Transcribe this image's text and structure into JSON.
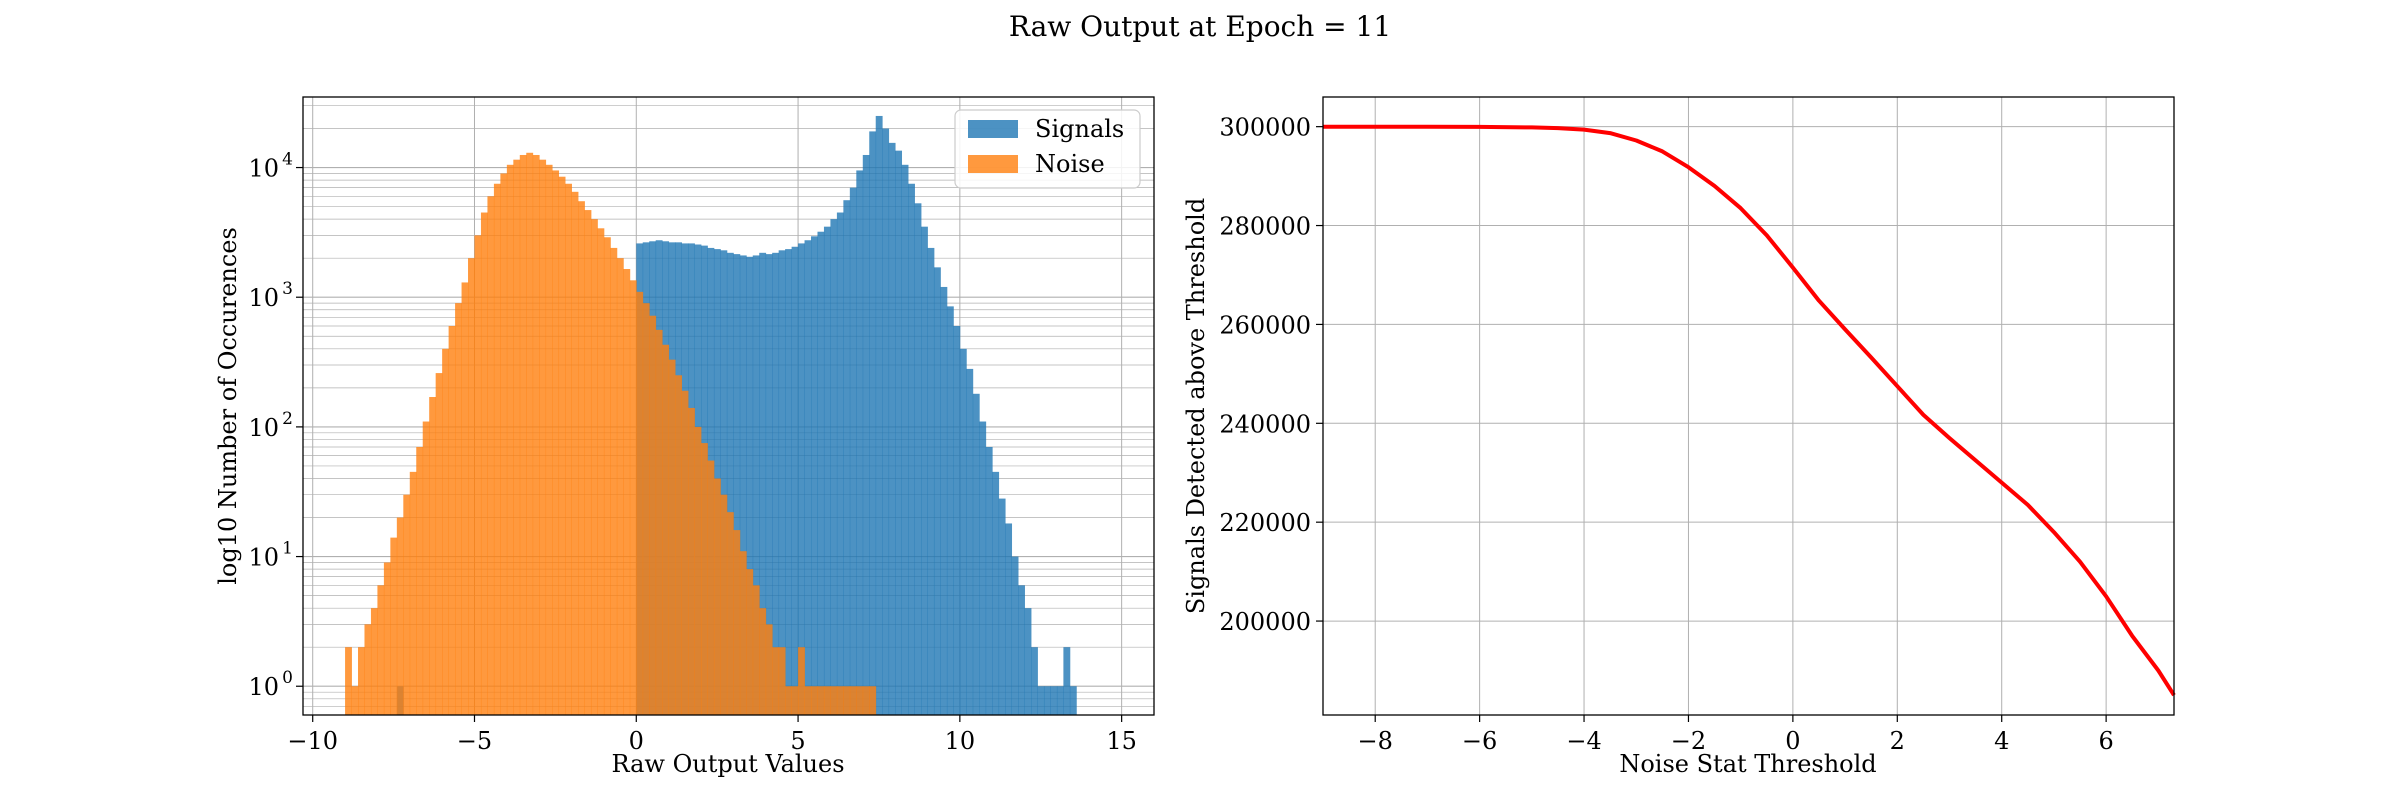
{
  "figure": {
    "title": "Raw Output at Epoch = 11"
  },
  "chart_data": [
    {
      "type": "bar",
      "subtype": "histogram",
      "xlabel": "Raw Output Values",
      "ylabel": "log10 Number of Occurences",
      "yscale": "log",
      "xlim": [
        -10.3,
        16.0
      ],
      "ylim": [
        0.6,
        35000
      ],
      "xticks": [
        "−10",
        "−5",
        "0",
        "5",
        "10",
        "15"
      ],
      "xtick_values": [
        -10,
        -5,
        0,
        5,
        10,
        15
      ],
      "yticks": [
        "10",
        "10",
        "10",
        "10",
        "10"
      ],
      "ytick_exponents": [
        "0",
        "1",
        "2",
        "3",
        "4"
      ],
      "ytick_values": [
        1,
        10,
        100,
        1000,
        10000
      ],
      "grid": true,
      "legend": "top-right",
      "series": [
        {
          "name": "Signals",
          "color": "#1f77b4",
          "opacity": 0.8,
          "x": [
            -9.0,
            -8.8,
            -8.6,
            -8.4,
            -8.2,
            -8.0,
            -7.8,
            -7.6,
            -7.4,
            -7.2,
            -7.0,
            -6.8,
            -6.6,
            -6.4,
            -6.2,
            -6.0,
            -5.8,
            -5.6,
            -5.4,
            -5.2,
            -5.0,
            -4.8,
            -4.6,
            -4.4,
            -4.2,
            -4.0,
            -3.8,
            -3.6,
            -3.4,
            -3.2,
            -3.0,
            -2.8,
            -2.6,
            -2.4,
            -2.2,
            -2.0,
            -1.8,
            -1.6,
            -1.4,
            -1.2,
            -1.0,
            -0.8,
            -0.6,
            -0.4,
            -0.2,
            0.0,
            0.2,
            0.4,
            0.6,
            0.8,
            1.0,
            1.2,
            1.4,
            1.6,
            1.8,
            2.0,
            2.2,
            2.4,
            2.6,
            2.8,
            3.0,
            3.2,
            3.4,
            3.6,
            3.8,
            4.0,
            4.2,
            4.4,
            4.6,
            4.8,
            5.0,
            5.2,
            5.4,
            5.6,
            5.8,
            6.0,
            6.2,
            6.4,
            6.6,
            6.8,
            7.0,
            7.2,
            7.4,
            7.6,
            7.8,
            8.0,
            8.2,
            8.4,
            8.6,
            8.8,
            9.0,
            9.2,
            9.4,
            9.6,
            9.8,
            10.0,
            10.2,
            10.4,
            10.6,
            10.8,
            11.0,
            11.2,
            11.4,
            11.6,
            11.8,
            12.0,
            12.2,
            12.4,
            12.6,
            12.8,
            13.0,
            13.2,
            13.4,
            13.6,
            13.8,
            14.0,
            14.2,
            14.4,
            14.6,
            14.8
          ],
          "values": [
            0,
            0,
            0,
            0,
            0,
            0,
            0,
            0,
            1,
            0,
            0,
            0,
            0,
            0,
            0,
            0,
            0,
            0,
            0,
            0,
            0,
            0,
            0,
            0,
            0,
            0,
            0,
            0,
            0,
            0,
            0,
            0,
            0,
            0,
            0,
            0,
            0,
            0,
            0,
            0,
            0,
            0,
            0,
            0,
            0,
            2600,
            2650,
            2700,
            2750,
            2700,
            2650,
            2650,
            2600,
            2600,
            2550,
            2500,
            2400,
            2350,
            2300,
            2200,
            2150,
            2100,
            2050,
            2100,
            2200,
            2150,
            2200,
            2300,
            2350,
            2450,
            2600,
            2750,
            2950,
            3200,
            3500,
            4000,
            4500,
            5600,
            7000,
            9500,
            12500,
            19000,
            25000,
            20000,
            15500,
            13500,
            10500,
            7500,
            5300,
            3500,
            2400,
            1700,
            1200,
            850,
            600,
            400,
            280,
            180,
            110,
            70,
            45,
            28,
            18,
            10,
            6,
            4,
            2,
            1,
            1,
            1,
            1,
            2,
            1,
            0,
            0,
            0,
            0,
            0,
            0,
            0
          ],
          "bin_width": 0.2
        },
        {
          "name": "Noise",
          "color": "#ff7f0e",
          "opacity": 0.8,
          "x": [
            -9.0,
            -8.8,
            -8.6,
            -8.4,
            -8.2,
            -8.0,
            -7.8,
            -7.6,
            -7.4,
            -7.2,
            -7.0,
            -6.8,
            -6.6,
            -6.4,
            -6.2,
            -6.0,
            -5.8,
            -5.6,
            -5.4,
            -5.2,
            -5.0,
            -4.8,
            -4.6,
            -4.4,
            -4.2,
            -4.0,
            -3.8,
            -3.6,
            -3.4,
            -3.2,
            -3.0,
            -2.8,
            -2.6,
            -2.4,
            -2.2,
            -2.0,
            -1.8,
            -1.6,
            -1.4,
            -1.2,
            -1.0,
            -0.8,
            -0.6,
            -0.4,
            -0.2,
            0.0,
            0.2,
            0.4,
            0.6,
            0.8,
            1.0,
            1.2,
            1.4,
            1.6,
            1.8,
            2.0,
            2.2,
            2.4,
            2.6,
            2.8,
            3.0,
            3.2,
            3.4,
            3.6,
            3.8,
            4.0,
            4.2,
            4.4,
            4.6,
            4.8,
            5.0,
            5.2,
            5.4,
            5.6,
            5.8,
            6.0,
            6.2,
            6.4,
            6.6,
            6.8,
            7.0,
            7.2
          ],
          "values": [
            2,
            1,
            2,
            3,
            4,
            6,
            9,
            14,
            20,
            30,
            45,
            70,
            110,
            170,
            260,
            400,
            600,
            900,
            1300,
            2000,
            3000,
            4500,
            6000,
            7500,
            9000,
            10500,
            11500,
            12500,
            13000,
            12500,
            11500,
            10500,
            9500,
            8500,
            7500,
            6500,
            5500,
            4700,
            4000,
            3400,
            2900,
            2400,
            2000,
            1650,
            1350,
            1100,
            900,
            720,
            560,
            430,
            330,
            250,
            190,
            140,
            100,
            75,
            55,
            40,
            30,
            22,
            16,
            11,
            8,
            6,
            4,
            3,
            2,
            2,
            1,
            1,
            2,
            1,
            1,
            1,
            1,
            1,
            1,
            1,
            1,
            1,
            1,
            1
          ],
          "bin_width": 0.2
        }
      ]
    },
    {
      "type": "line",
      "xlabel": "Noise Stat Threshold",
      "ylabel": "Signals Detected above Threshold",
      "xlim": [
        -9.0,
        7.3
      ],
      "ylim": [
        181000,
        306000
      ],
      "xticks": [
        "−8",
        "−6",
        "−4",
        "−2",
        "0",
        "2",
        "4",
        "6"
      ],
      "xtick_values": [
        -8,
        -6,
        -4,
        -2,
        0,
        2,
        4,
        6
      ],
      "yticks": [
        "200000",
        "220000",
        "240000",
        "260000",
        "280000",
        "300000"
      ],
      "ytick_values": [
        200000,
        220000,
        240000,
        260000,
        280000,
        300000
      ],
      "grid": true,
      "series": [
        {
          "color": "#ff0000",
          "x": [
            -9.0,
            -8.0,
            -7.0,
            -6.0,
            -5.0,
            -4.5,
            -4.0,
            -3.5,
            -3.0,
            -2.5,
            -2.0,
            -1.5,
            -1.0,
            -0.5,
            0.0,
            0.5,
            1.0,
            1.5,
            2.0,
            2.5,
            3.0,
            3.5,
            4.0,
            4.5,
            5.0,
            5.5,
            6.0,
            6.5,
            7.0,
            7.3
          ],
          "values": [
            300000,
            300000,
            300000,
            299950,
            299850,
            299700,
            299400,
            298700,
            297200,
            295000,
            291800,
            288000,
            283500,
            278000,
            271500,
            264800,
            259000,
            253300,
            247500,
            241700,
            237000,
            232500,
            228000,
            223500,
            218000,
            212000,
            205000,
            197000,
            190000,
            185000
          ]
        }
      ]
    }
  ]
}
